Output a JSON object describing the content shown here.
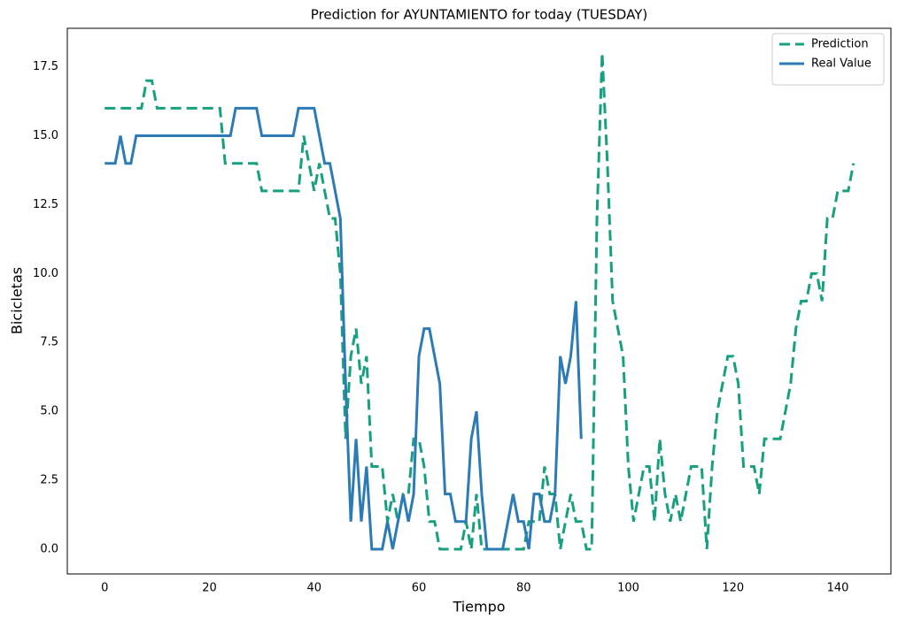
{
  "chart_data": {
    "type": "line",
    "title": "Prediction for AYUNTAMIENTO for today (TUESDAY)",
    "xlabel": "Tiempo",
    "ylabel": "Bicicletas",
    "x": [
      0,
      1,
      2,
      3,
      4,
      5,
      6,
      7,
      8,
      9,
      10,
      11,
      12,
      13,
      14,
      15,
      16,
      17,
      18,
      19,
      20,
      21,
      22,
      23,
      24,
      25,
      26,
      27,
      28,
      29,
      30,
      31,
      32,
      33,
      34,
      35,
      36,
      37,
      38,
      39,
      40,
      41,
      42,
      43,
      44,
      45,
      46,
      47,
      48,
      49,
      50,
      51,
      52,
      53,
      54,
      55,
      56,
      57,
      58,
      59,
      60,
      61,
      62,
      63,
      64,
      65,
      66,
      67,
      68,
      69,
      70,
      71,
      72,
      73,
      74,
      75,
      76,
      77,
      78,
      79,
      80,
      81,
      82,
      83,
      84,
      85,
      86,
      87,
      88,
      89,
      90,
      91,
      92,
      93,
      94,
      95,
      96,
      97,
      98,
      99,
      100,
      101,
      102,
      103,
      104,
      105,
      106,
      107,
      108,
      109,
      110,
      111,
      112,
      113,
      114,
      115,
      116,
      117,
      118,
      119,
      120,
      121,
      122,
      123,
      124,
      125,
      126,
      127,
      128,
      129,
      130,
      131,
      132,
      133,
      134,
      135,
      136,
      137,
      138,
      139,
      140,
      141,
      142,
      143
    ],
    "series": [
      {
        "name": "Prediction",
        "color": "#17a07f",
        "dashed": true,
        "values": [
          16,
          16,
          16,
          16,
          16,
          16,
          16,
          16,
          17,
          17,
          16,
          16,
          16,
          16,
          16,
          16,
          16,
          16,
          16,
          16,
          16,
          16,
          16,
          14,
          14,
          14,
          14,
          14,
          14,
          14,
          13,
          13,
          13,
          13,
          13,
          13,
          13,
          13,
          15,
          14,
          13,
          14,
          13,
          12,
          12,
          10,
          4,
          7,
          8,
          6,
          7,
          3,
          3,
          3,
          1,
          2,
          1,
          2,
          2,
          4,
          4,
          3,
          1,
          1,
          0,
          0,
          0,
          0,
          0,
          1,
          0,
          2,
          0,
          0,
          0,
          0,
          0,
          0,
          0,
          0,
          0,
          1,
          1,
          1,
          3,
          2,
          2,
          0,
          1,
          2,
          1,
          1,
          0,
          0,
          12,
          18,
          14,
          9,
          8,
          7,
          3,
          1,
          2,
          3,
          3,
          1,
          4,
          2,
          1,
          2,
          1,
          2,
          3,
          3,
          3,
          0,
          3,
          5,
          6,
          7,
          7,
          6,
          3,
          3,
          3,
          2,
          4,
          4,
          4,
          4,
          5,
          6,
          8,
          9,
          9,
          10,
          10,
          9,
          12,
          12,
          13,
          13,
          13,
          14
        ]
      },
      {
        "name": "Real Value",
        "color": "#2c7bb6",
        "dashed": false,
        "values": [
          14,
          14,
          14,
          15,
          14,
          14,
          15,
          15,
          15,
          15,
          15,
          15,
          15,
          15,
          15,
          15,
          15,
          15,
          15,
          15,
          15,
          15,
          15,
          15,
          15,
          16,
          16,
          16,
          16,
          16,
          15,
          15,
          15,
          15,
          15,
          15,
          15,
          16,
          16,
          16,
          16,
          15,
          14,
          14,
          13,
          12,
          6,
          1,
          4,
          1,
          3,
          0,
          0,
          0,
          1,
          0,
          1,
          2,
          1,
          2,
          7,
          8,
          8,
          7,
          6,
          2,
          2,
          1,
          1,
          1,
          4,
          5,
          2,
          0,
          0,
          0,
          0,
          1,
          2,
          1,
          1,
          0,
          2,
          2,
          1,
          1,
          2,
          7,
          6,
          7,
          9,
          4,
          null,
          null,
          null,
          null,
          null,
          null,
          null,
          null,
          null,
          null,
          null,
          null,
          null,
          null,
          null,
          null,
          null,
          null,
          null,
          null,
          null,
          null,
          null,
          null,
          null,
          null,
          null,
          null,
          null,
          null,
          null,
          null,
          null,
          null,
          null,
          null,
          null,
          null,
          null,
          null,
          null,
          null,
          null,
          null,
          null,
          null,
          null,
          null,
          null,
          null,
          null,
          null
        ]
      }
    ],
    "xlim": [
      -7.15,
      150.15
    ],
    "ylim": [
      -0.9,
      18.9
    ],
    "xticks": [
      0,
      20,
      40,
      60,
      80,
      100,
      120,
      140
    ],
    "yticks": [
      {
        "value": 0,
        "label": "0.0"
      },
      2.5,
      {
        "value": 5,
        "label": "5.0"
      },
      7.5,
      {
        "value": 10,
        "label": "10.0"
      },
      12.5,
      {
        "value": 15,
        "label": "15.0"
      },
      17.5
    ],
    "legend": "upper right",
    "grid": false
  }
}
